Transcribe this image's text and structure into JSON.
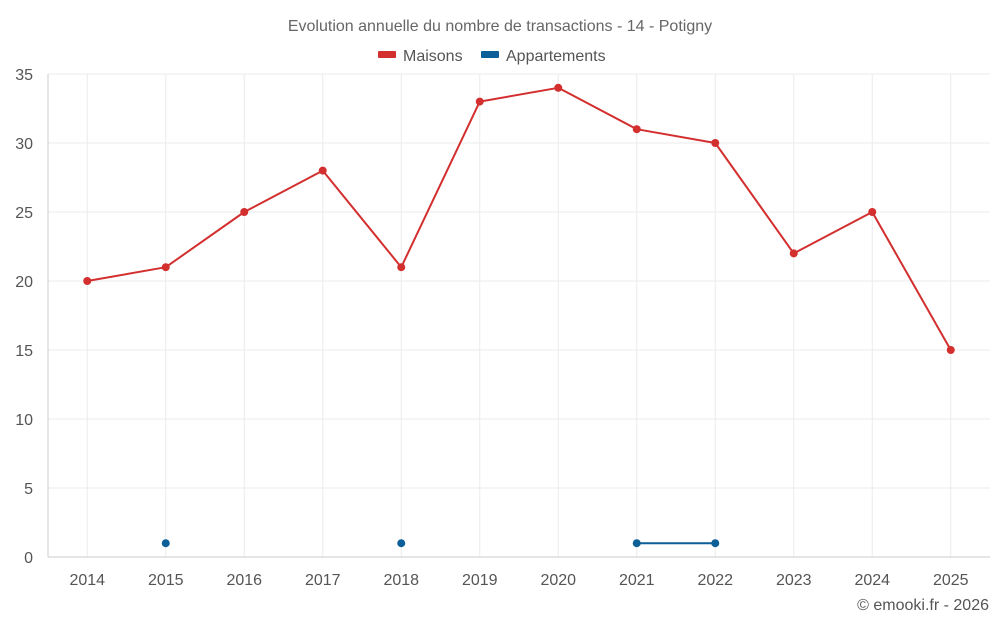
{
  "chart_data": {
    "type": "line",
    "title": "Evolution annuelle du nombre de transactions - 14 - Potigny",
    "categories": [
      "2014",
      "2015",
      "2016",
      "2017",
      "2018",
      "2019",
      "2020",
      "2021",
      "2022",
      "2023",
      "2024",
      "2025"
    ],
    "ylim": [
      0,
      35
    ],
    "yticks": [
      0,
      5,
      10,
      15,
      20,
      25,
      30,
      35
    ],
    "grid": true,
    "legend_position": "top-center",
    "series": [
      {
        "name": "Maisons",
        "color": "#d32f2f",
        "values": [
          20,
          21,
          25,
          28,
          21,
          33,
          34,
          31,
          30,
          22,
          25,
          15
        ]
      },
      {
        "name": "Appartements",
        "color": "#0d5f97",
        "values": [
          null,
          1,
          null,
          null,
          1,
          null,
          null,
          1,
          1,
          null,
          null,
          null
        ]
      }
    ],
    "credit": "© emooki.fr - 2026"
  }
}
